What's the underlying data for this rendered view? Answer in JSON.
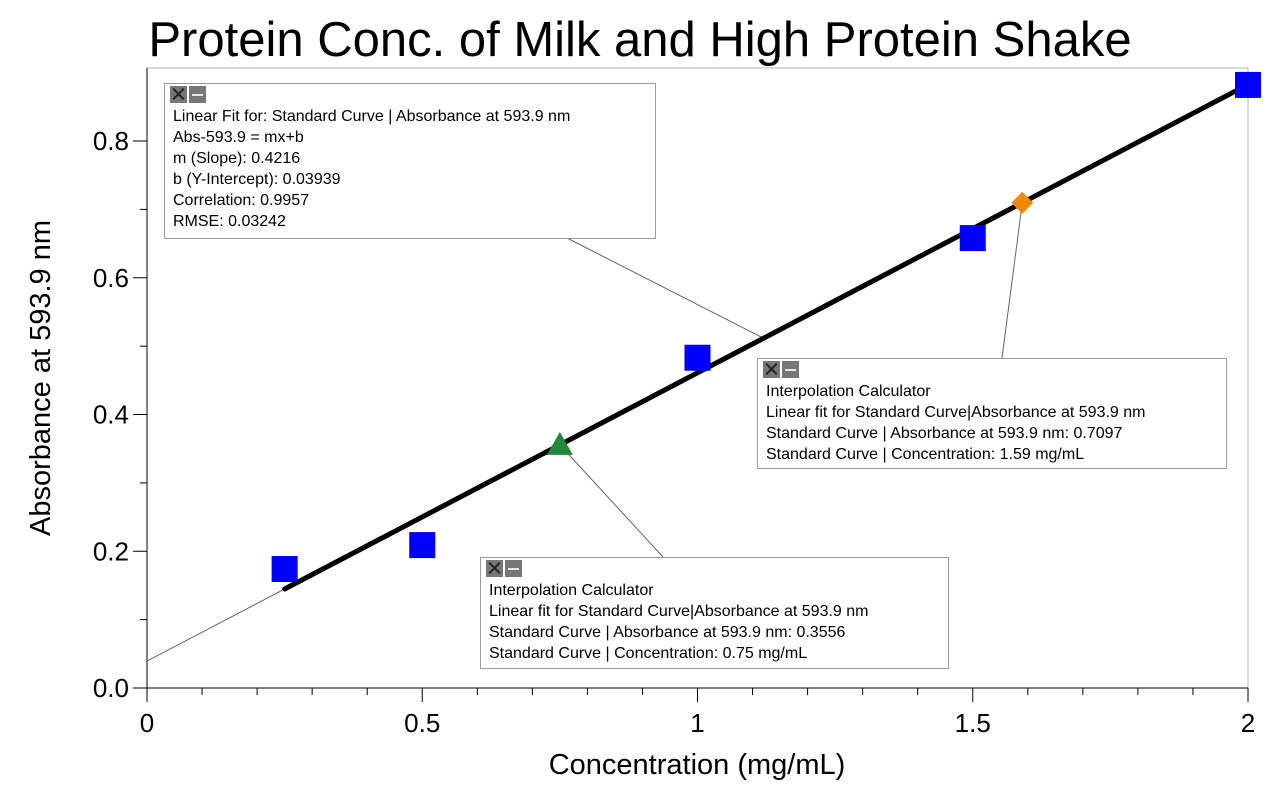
{
  "title": "Protein Conc. of Milk and High Protein Shake",
  "chart_data": {
    "type": "scatter",
    "title": "Protein Conc. of Milk and High Protein Shake",
    "xlabel": "Concentration (mg/mL)",
    "ylabel": "Absorbance at 593.9 nm",
    "xlim": [
      0,
      2
    ],
    "ylim": [
      0,
      0.9
    ],
    "x_ticks": [
      0,
      0.5,
      1,
      1.5,
      2
    ],
    "x_tick_labels": [
      "0",
      "0.5",
      "1",
      "1.5",
      "2"
    ],
    "y_ticks": [
      0,
      0.2,
      0.4,
      0.6,
      0.8
    ],
    "y_tick_labels": [
      "0.0",
      "0.2",
      "0.4",
      "0.6",
      "0.8"
    ],
    "grid": false,
    "series": [
      {
        "marker": "square",
        "color": "#0000ff",
        "x": [
          0.25,
          0.5,
          1.0,
          1.5,
          2.0
        ],
        "y": [
          0.174,
          0.209,
          0.483,
          0.658,
          0.882
        ]
      },
      {
        "marker": "triangle",
        "color": "#1e8a3c",
        "x": [
          0.75
        ],
        "y": [
          0.3556
        ]
      },
      {
        "marker": "diamond",
        "color": "#f08a00",
        "x": [
          1.59
        ],
        "y": [
          0.7097
        ]
      }
    ],
    "fit_line": {
      "slope": 0.4216,
      "intercept": 0.03939,
      "x_range": [
        0.25,
        2.0
      ],
      "color": "#000000"
    }
  },
  "fit_box": {
    "lines": [
      "Linear Fit for: Standard Curve | Absorbance at 593.9 nm",
      "Abs-593.9 = mx+b",
      "m (Slope): 0.4216",
      "b (Y-Intercept): 0.03939",
      "Correlation: 0.9957",
      "RMSE: 0.03242"
    ]
  },
  "interp_box_1": {
    "lines": [
      "Interpolation Calculator",
      "Linear fit for Standard Curve|Absorbance at 593.9 nm",
      "Standard Curve | Absorbance at 593.9 nm: 0.7097",
      "Standard Curve | Concentration: 1.59 mg/mL"
    ]
  },
  "interp_box_2": {
    "lines": [
      "Interpolation Calculator",
      "Linear fit for Standard Curve|Absorbance at 593.9 nm",
      "Standard Curve | Absorbance at 593.9 nm: 0.3556",
      "Standard Curve | Concentration: 0.75 mg/mL"
    ]
  }
}
